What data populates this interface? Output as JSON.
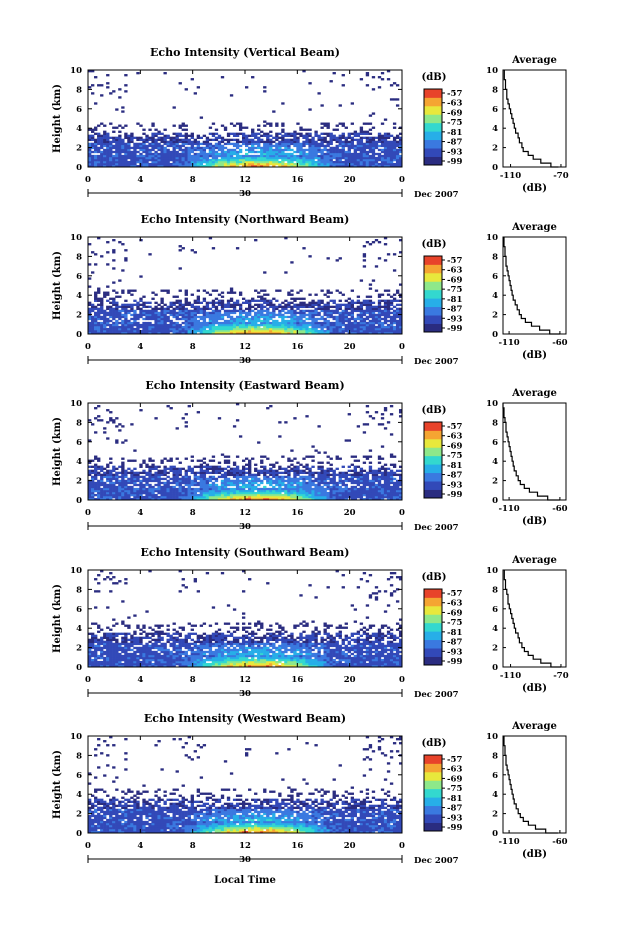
{
  "colors": {
    "colorbar": [
      "#2a2c80",
      "#3249b8",
      "#3a79e0",
      "#27aee8",
      "#33d8cf",
      "#8ee88a",
      "#e8e83c",
      "#f5a532",
      "#e8432a"
    ],
    "average_line": "#000000"
  },
  "chart_data": [
    {
      "type": "heatmap",
      "title": "Echo Intensity (Vertical Beam)",
      "ylabel": "Height (km)",
      "xlabel": "",
      "x_ticks": [
        "0",
        "4",
        "8",
        "12",
        "16",
        "20",
        "0"
      ],
      "xlim": [
        0,
        24
      ],
      "y_ticks": [
        "0",
        "2",
        "4",
        "6",
        "8",
        "10"
      ],
      "ylim": [
        0,
        10
      ],
      "date_label": "30",
      "month_label": "Dec 2007",
      "colorbar_label": "(dB)",
      "colorbar_ticks": [
        "-57",
        "-63",
        "-69",
        "-75",
        "-81",
        "-87",
        "-93",
        "-99"
      ],
      "average": {
        "title": "Average",
        "xlabel": "(dB)",
        "x_ticks": [
          "-110",
          "-70"
        ],
        "xlim": [
          -116,
          -66
        ],
        "y_ticks": [
          "0",
          "2",
          "4",
          "6",
          "8",
          "10"
        ],
        "ylim": [
          0,
          10
        ],
        "profile": [
          [
            -72,
            0
          ],
          [
            -78,
            0.4
          ],
          [
            -86,
            0.8
          ],
          [
            -92,
            1.2
          ],
          [
            -96,
            1.6
          ],
          [
            -100,
            2.0
          ],
          [
            -101,
            2.5
          ],
          [
            -103,
            3.0
          ],
          [
            -104,
            3.5
          ],
          [
            -106,
            4.0
          ],
          [
            -107,
            4.5
          ],
          [
            -108,
            5.0
          ],
          [
            -109,
            5.5
          ],
          [
            -110,
            6.0
          ],
          [
            -111,
            6.5
          ],
          [
            -112,
            7.0
          ],
          [
            -113,
            7.5
          ],
          [
            -113,
            8.0
          ],
          [
            -114,
            8.5
          ],
          [
            -114,
            9.0
          ],
          [
            -115,
            9.5
          ],
          [
            -115,
            10.0
          ]
        ]
      }
    },
    {
      "type": "heatmap",
      "title": "Echo Intensity (Northward Beam)",
      "ylabel": "Height (km)",
      "xlabel": "",
      "x_ticks": [
        "0",
        "4",
        "8",
        "12",
        "16",
        "20",
        "0"
      ],
      "xlim": [
        0,
        24
      ],
      "y_ticks": [
        "0",
        "2",
        "4",
        "6",
        "8",
        "10"
      ],
      "ylim": [
        0,
        10
      ],
      "date_label": "30",
      "month_label": "Dec 2007",
      "colorbar_label": "(dB)",
      "colorbar_ticks": [
        "-57",
        "-63",
        "-69",
        "-75",
        "-81",
        "-87",
        "-93",
        "-99"
      ],
      "average": {
        "title": "Average",
        "xlabel": "(dB)",
        "x_ticks": [
          "-110",
          "-60"
        ],
        "xlim": [
          -116,
          -54
        ],
        "y_ticks": [
          "0",
          "2",
          "4",
          "6",
          "8",
          "10"
        ],
        "ylim": [
          0,
          10
        ],
        "profile": [
          [
            -60,
            0
          ],
          [
            -70,
            0.4
          ],
          [
            -80,
            0.8
          ],
          [
            -88,
            1.2
          ],
          [
            -94,
            1.6
          ],
          [
            -98,
            2.0
          ],
          [
            -100,
            2.5
          ],
          [
            -102,
            3.0
          ],
          [
            -104,
            3.5
          ],
          [
            -106,
            4.0
          ],
          [
            -107,
            4.5
          ],
          [
            -108,
            5.0
          ],
          [
            -109,
            5.5
          ],
          [
            -110,
            6.0
          ],
          [
            -111,
            6.5
          ],
          [
            -112,
            7.0
          ],
          [
            -113,
            7.5
          ],
          [
            -113,
            8.0
          ],
          [
            -114,
            8.5
          ],
          [
            -114,
            9.0
          ],
          [
            -115,
            9.5
          ],
          [
            -115,
            10.0
          ]
        ]
      }
    },
    {
      "type": "heatmap",
      "title": "Echo Intensity (Eastward Beam)",
      "ylabel": "Height (km)",
      "xlabel": "",
      "x_ticks": [
        "0",
        "4",
        "8",
        "12",
        "16",
        "20",
        "0"
      ],
      "xlim": [
        0,
        24
      ],
      "y_ticks": [
        "0",
        "2",
        "4",
        "6",
        "8",
        "10"
      ],
      "ylim": [
        0,
        10
      ],
      "date_label": "30",
      "month_label": "Dec 2007",
      "colorbar_label": "(dB)",
      "colorbar_ticks": [
        "-57",
        "-63",
        "-69",
        "-75",
        "-81",
        "-87",
        "-93",
        "-99"
      ],
      "average": {
        "title": "Average",
        "xlabel": "(dB)",
        "x_ticks": [
          "-110",
          "-60"
        ],
        "xlim": [
          -116,
          -54
        ],
        "y_ticks": [
          "0",
          "2",
          "4",
          "6",
          "8",
          "10"
        ],
        "ylim": [
          0,
          10
        ],
        "profile": [
          [
            -60,
            0
          ],
          [
            -72,
            0.4
          ],
          [
            -82,
            0.8
          ],
          [
            -90,
            1.2
          ],
          [
            -95,
            1.6
          ],
          [
            -99,
            2.0
          ],
          [
            -101,
            2.5
          ],
          [
            -103,
            3.0
          ],
          [
            -105,
            3.5
          ],
          [
            -106,
            4.0
          ],
          [
            -107,
            4.5
          ],
          [
            -108,
            5.0
          ],
          [
            -109,
            5.5
          ],
          [
            -110,
            6.0
          ],
          [
            -111,
            6.5
          ],
          [
            -112,
            7.0
          ],
          [
            -113,
            7.5
          ],
          [
            -113,
            8.0
          ],
          [
            -114,
            8.5
          ],
          [
            -115,
            9.0
          ],
          [
            -115,
            9.5
          ],
          [
            -116,
            10.0
          ]
        ]
      }
    },
    {
      "type": "heatmap",
      "title": "Echo Intensity (Southward Beam)",
      "ylabel": "Height (km)",
      "xlabel": "",
      "x_ticks": [
        "0",
        "4",
        "8",
        "12",
        "16",
        "20",
        "0"
      ],
      "xlim": [
        0,
        24
      ],
      "y_ticks": [
        "0",
        "2",
        "4",
        "6",
        "8",
        "10"
      ],
      "ylim": [
        0,
        10
      ],
      "date_label": "30",
      "month_label": "Dec 2007",
      "colorbar_label": "(dB)",
      "colorbar_ticks": [
        "-57",
        "-63",
        "-69",
        "-75",
        "-81",
        "-87",
        "-93",
        "-99"
      ],
      "average": {
        "title": "Average",
        "xlabel": "(dB)",
        "x_ticks": [
          "-110",
          "-70"
        ],
        "xlim": [
          -116,
          -66
        ],
        "y_ticks": [
          "0",
          "2",
          "4",
          "6",
          "8",
          "10"
        ],
        "ylim": [
          0,
          10
        ],
        "profile": [
          [
            -70,
            0
          ],
          [
            -78,
            0.4
          ],
          [
            -86,
            0.8
          ],
          [
            -92,
            1.2
          ],
          [
            -96,
            1.6
          ],
          [
            -99,
            2.0
          ],
          [
            -101,
            2.5
          ],
          [
            -103,
            3.0
          ],
          [
            -104,
            3.5
          ],
          [
            -106,
            4.0
          ],
          [
            -107,
            4.5
          ],
          [
            -108,
            5.0
          ],
          [
            -109,
            5.5
          ],
          [
            -110,
            6.0
          ],
          [
            -111,
            6.5
          ],
          [
            -112,
            7.0
          ],
          [
            -112,
            7.5
          ],
          [
            -113,
            8.0
          ],
          [
            -114,
            8.5
          ],
          [
            -114,
            9.0
          ],
          [
            -115,
            9.5
          ],
          [
            -115,
            10.0
          ]
        ]
      }
    },
    {
      "type": "heatmap",
      "title": "Echo Intensity (Westward Beam)",
      "ylabel": "Height (km)",
      "xlabel": "Local Time",
      "x_ticks": [
        "0",
        "4",
        "8",
        "12",
        "16",
        "20",
        "0"
      ],
      "xlim": [
        0,
        24
      ],
      "y_ticks": [
        "0",
        "2",
        "4",
        "6",
        "8",
        "10"
      ],
      "ylim": [
        0,
        10
      ],
      "date_label": "30",
      "month_label": "Dec 2007",
      "colorbar_label": "(dB)",
      "colorbar_ticks": [
        "-57",
        "-63",
        "-69",
        "-75",
        "-81",
        "-87",
        "-93",
        "-99"
      ],
      "average": {
        "title": "Average",
        "xlabel": "(dB)",
        "x_ticks": [
          "-110",
          "-60"
        ],
        "xlim": [
          -116,
          -54
        ],
        "y_ticks": [
          "0",
          "2",
          "4",
          "6",
          "8",
          "10"
        ],
        "ylim": [
          0,
          10
        ],
        "profile": [
          [
            -62,
            0
          ],
          [
            -74,
            0.4
          ],
          [
            -84,
            0.8
          ],
          [
            -91,
            1.2
          ],
          [
            -96,
            1.6
          ],
          [
            -99,
            2.0
          ],
          [
            -101,
            2.5
          ],
          [
            -103,
            3.0
          ],
          [
            -105,
            3.5
          ],
          [
            -106,
            4.0
          ],
          [
            -107,
            4.5
          ],
          [
            -108,
            5.0
          ],
          [
            -109,
            5.5
          ],
          [
            -110,
            6.0
          ],
          [
            -111,
            6.5
          ],
          [
            -112,
            7.0
          ],
          [
            -113,
            7.5
          ],
          [
            -113,
            8.0
          ],
          [
            -114,
            8.5
          ],
          [
            -114,
            9.0
          ],
          [
            -115,
            9.5
          ],
          [
            -115,
            10.0
          ]
        ]
      }
    }
  ]
}
